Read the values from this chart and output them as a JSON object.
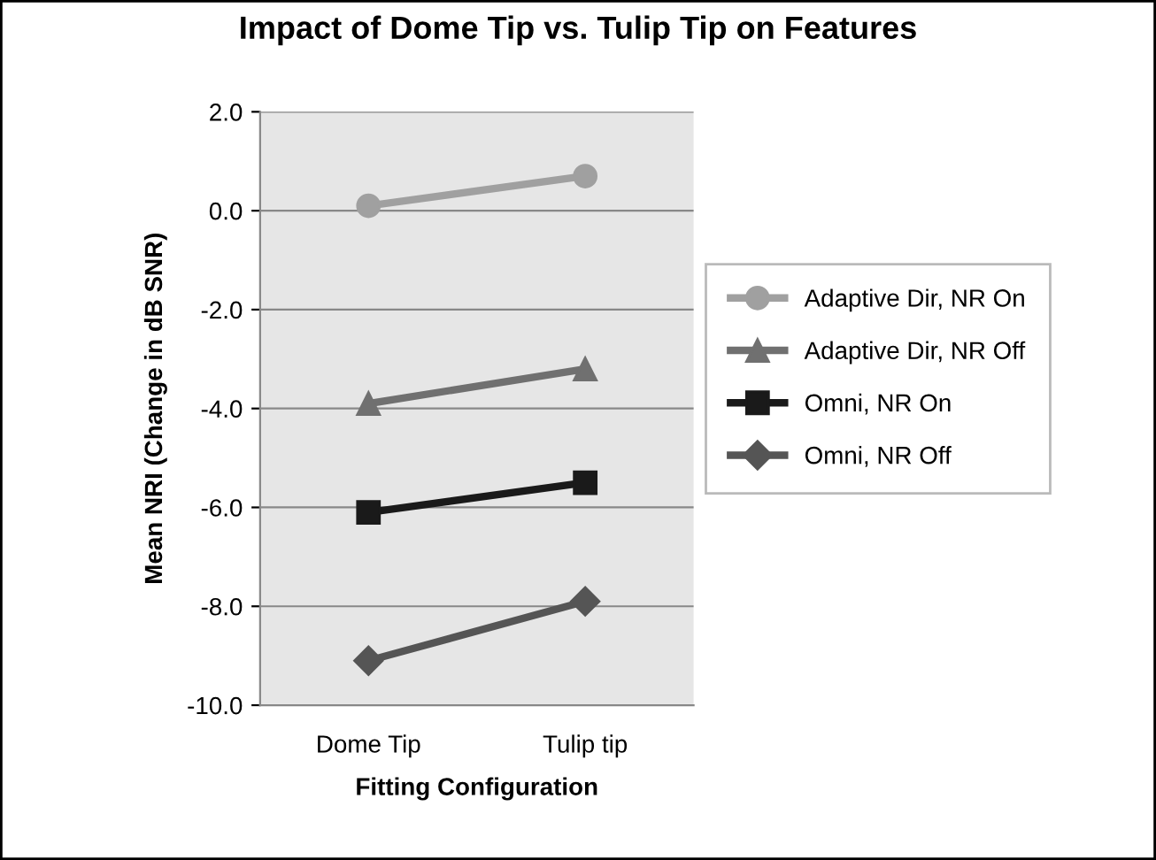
{
  "chart_data": {
    "type": "line",
    "title": "Impact of Dome Tip vs. Tulip Tip on Features",
    "xlabel": "Fitting Configuration",
    "ylabel": "Mean NRI (Change in dB SNR)",
    "categories": [
      "Dome Tip",
      "Tulip tip"
    ],
    "series": [
      {
        "name": "Adaptive Dir, NR On",
        "color": "#a0a0a0",
        "marker": "circle",
        "values": [
          0.1,
          0.7
        ]
      },
      {
        "name": "Adaptive Dir, NR Off",
        "color": "#707070",
        "marker": "triangle",
        "values": [
          -3.9,
          -3.2
        ]
      },
      {
        "name": "Omni, NR On",
        "color": "#1a1a1a",
        "marker": "square",
        "values": [
          -6.1,
          -5.5
        ]
      },
      {
        "name": "Omni, NR Off",
        "color": "#555555",
        "marker": "diamond",
        "values": [
          -9.1,
          -7.9
        ]
      }
    ],
    "ylim": [
      -10,
      2
    ],
    "yticks": [
      {
        "value": -10,
        "label": "-10.0"
      },
      {
        "value": -8,
        "label": "-8.0"
      },
      {
        "value": -6,
        "label": "-6.0"
      },
      {
        "value": -4,
        "label": "-4.0"
      },
      {
        "value": -2,
        "label": "-2.0"
      },
      {
        "value": 0,
        "label": "0.0"
      },
      {
        "value": 2,
        "label": "2.0"
      }
    ],
    "grid": "y",
    "legend": "right",
    "line_style": "solid"
  }
}
